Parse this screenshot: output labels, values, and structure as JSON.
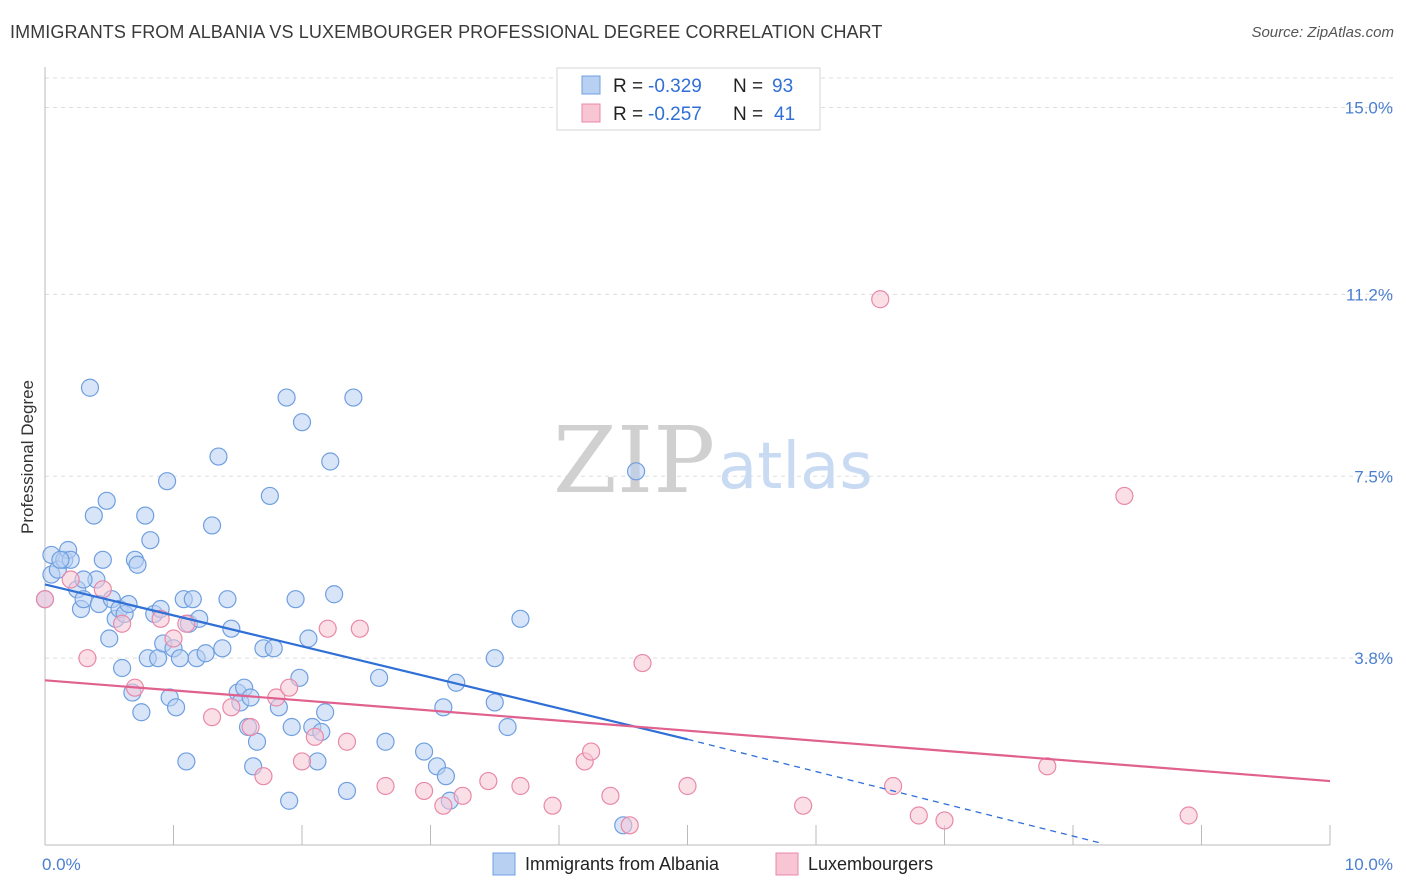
{
  "title": "IMMIGRANTS FROM ALBANIA VS LUXEMBOURGER PROFESSIONAL DEGREE CORRELATION CHART",
  "source": "Source: ZipAtlas.com",
  "watermark": {
    "zip": "ZIP",
    "atlas": "atlas"
  },
  "colors": {
    "blue_fill": "#b8d0f2",
    "blue_stroke": "#6f9fe0",
    "blue_line": "#2f6fd6",
    "pink_fill": "#f7c5d4",
    "pink_stroke": "#e889a8",
    "pink_line": "#e0608e",
    "grid": "#dddddd",
    "axis_text": "#4a7fd0"
  },
  "legend": {
    "rows": [
      {
        "r_label": "R = ",
        "r_value": "-0.329",
        "n_label": "N = ",
        "n_value": "93"
      },
      {
        "r_label": "R = ",
        "r_value": "-0.257",
        "n_label": "N = ",
        "n_value": "41"
      }
    ]
  },
  "chart_data": {
    "type": "scatter",
    "title": "IMMIGRANTS FROM ALBANIA VS LUXEMBOURGER PROFESSIONAL DEGREE CORRELATION CHART",
    "xlabel": "",
    "ylabel": "Professional Degree",
    "xlim": [
      0,
      10
    ],
    "ylim": [
      0,
      15.6
    ],
    "x_tick_labels": [
      "0.0%",
      "10.0%"
    ],
    "y_ticks": [
      3.8,
      7.5,
      11.2,
      15.0
    ],
    "y_tick_labels": [
      "3.8%",
      "7.5%",
      "11.2%",
      "15.0%"
    ],
    "grid": true,
    "legend_position": "top-center",
    "series": [
      {
        "name": "Immigrants from Albania",
        "color": "#6f9fe0",
        "trend": {
          "x": [
            0.0,
            5.0
          ],
          "y": [
            5.3,
            2.15
          ],
          "dashed_extension": {
            "x": [
              5.0,
              8.2
            ],
            "y": [
              2.15,
              0.05
            ]
          }
        },
        "points": [
          [
            0.0,
            5.0
          ],
          [
            0.05,
            5.5
          ],
          [
            0.05,
            5.9
          ],
          [
            0.1,
            5.6
          ],
          [
            0.15,
            5.8
          ],
          [
            0.18,
            6.0
          ],
          [
            0.2,
            5.8
          ],
          [
            0.25,
            5.2
          ],
          [
            0.28,
            4.8
          ],
          [
            0.3,
            5.0
          ],
          [
            0.35,
            9.3
          ],
          [
            0.38,
            6.7
          ],
          [
            0.4,
            5.4
          ],
          [
            0.42,
            4.9
          ],
          [
            0.45,
            5.8
          ],
          [
            0.48,
            7.0
          ],
          [
            0.5,
            4.2
          ],
          [
            0.52,
            5.0
          ],
          [
            0.55,
            4.6
          ],
          [
            0.58,
            4.8
          ],
          [
            0.6,
            3.6
          ],
          [
            0.62,
            4.7
          ],
          [
            0.65,
            4.9
          ],
          [
            0.68,
            3.1
          ],
          [
            0.7,
            5.8
          ],
          [
            0.72,
            5.7
          ],
          [
            0.75,
            2.7
          ],
          [
            0.78,
            6.7
          ],
          [
            0.8,
            3.8
          ],
          [
            0.82,
            6.2
          ],
          [
            0.85,
            4.7
          ],
          [
            0.88,
            3.8
          ],
          [
            0.9,
            4.8
          ],
          [
            0.92,
            4.1
          ],
          [
            0.95,
            7.4
          ],
          [
            0.97,
            3.0
          ],
          [
            1.0,
            4.0
          ],
          [
            1.02,
            2.8
          ],
          [
            1.05,
            3.8
          ],
          [
            1.08,
            5.0
          ],
          [
            1.1,
            1.7
          ],
          [
            1.12,
            4.5
          ],
          [
            1.15,
            5.0
          ],
          [
            1.18,
            3.8
          ],
          [
            1.2,
            4.6
          ],
          [
            1.25,
            3.9
          ],
          [
            1.3,
            6.5
          ],
          [
            1.35,
            7.9
          ],
          [
            1.38,
            4.0
          ],
          [
            1.42,
            5.0
          ],
          [
            1.45,
            4.4
          ],
          [
            1.5,
            3.1
          ],
          [
            1.52,
            2.9
          ],
          [
            1.55,
            3.2
          ],
          [
            1.58,
            2.4
          ],
          [
            1.6,
            3.0
          ],
          [
            1.62,
            1.6
          ],
          [
            1.65,
            2.1
          ],
          [
            1.7,
            4.0
          ],
          [
            1.75,
            7.1
          ],
          [
            1.78,
            4.0
          ],
          [
            1.82,
            2.8
          ],
          [
            1.88,
            9.1
          ],
          [
            1.9,
            0.9
          ],
          [
            1.92,
            2.4
          ],
          [
            1.95,
            5.0
          ],
          [
            1.98,
            3.4
          ],
          [
            2.0,
            8.6
          ],
          [
            2.05,
            4.2
          ],
          [
            2.08,
            2.4
          ],
          [
            2.12,
            1.7
          ],
          [
            2.15,
            2.3
          ],
          [
            2.18,
            2.7
          ],
          [
            2.22,
            7.8
          ],
          [
            2.25,
            5.1
          ],
          [
            2.35,
            1.1
          ],
          [
            2.4,
            9.1
          ],
          [
            2.6,
            3.4
          ],
          [
            2.65,
            2.1
          ],
          [
            2.95,
            1.9
          ],
          [
            3.05,
            1.6
          ],
          [
            3.1,
            2.8
          ],
          [
            3.12,
            1.4
          ],
          [
            3.15,
            0.9
          ],
          [
            3.2,
            3.3
          ],
          [
            3.5,
            2.9
          ],
          [
            3.5,
            3.8
          ],
          [
            3.6,
            2.4
          ],
          [
            3.7,
            4.6
          ],
          [
            4.5,
            0.4
          ],
          [
            4.6,
            7.6
          ],
          [
            0.12,
            5.8
          ],
          [
            0.3,
            5.4
          ]
        ]
      },
      {
        "name": "Luxembourgers",
        "color": "#e889a8",
        "trend": {
          "x": [
            0.0,
            10.0
          ],
          "y": [
            3.35,
            1.3
          ]
        },
        "points": [
          [
            0.0,
            5.0
          ],
          [
            0.2,
            5.4
          ],
          [
            0.33,
            3.8
          ],
          [
            0.45,
            5.2
          ],
          [
            0.6,
            4.5
          ],
          [
            0.7,
            3.2
          ],
          [
            0.9,
            4.6
          ],
          [
            1.0,
            4.2
          ],
          [
            1.1,
            4.5
          ],
          [
            1.3,
            2.6
          ],
          [
            1.45,
            2.8
          ],
          [
            1.6,
            2.4
          ],
          [
            1.7,
            1.4
          ],
          [
            1.8,
            3.0
          ],
          [
            1.9,
            3.2
          ],
          [
            2.0,
            1.7
          ],
          [
            2.1,
            2.2
          ],
          [
            2.2,
            4.4
          ],
          [
            2.35,
            2.1
          ],
          [
            2.45,
            4.4
          ],
          [
            2.65,
            1.2
          ],
          [
            2.95,
            1.1
          ],
          [
            3.1,
            0.8
          ],
          [
            3.25,
            1.0
          ],
          [
            3.45,
            1.3
          ],
          [
            3.7,
            1.2
          ],
          [
            3.95,
            0.8
          ],
          [
            4.2,
            1.7
          ],
          [
            4.25,
            1.9
          ],
          [
            4.4,
            1.0
          ],
          [
            4.55,
            0.4
          ],
          [
            4.65,
            3.7
          ],
          [
            5.0,
            1.2
          ],
          [
            5.9,
            0.8
          ],
          [
            6.5,
            11.1
          ],
          [
            6.6,
            1.2
          ],
          [
            6.8,
            0.6
          ],
          [
            7.0,
            0.5
          ],
          [
            7.8,
            1.6
          ],
          [
            8.4,
            7.1
          ],
          [
            8.9,
            0.6
          ]
        ]
      }
    ]
  },
  "bottom_legend": {
    "items": [
      {
        "label": "Immigrants from Albania"
      },
      {
        "label": "Luxembourgers"
      }
    ]
  }
}
